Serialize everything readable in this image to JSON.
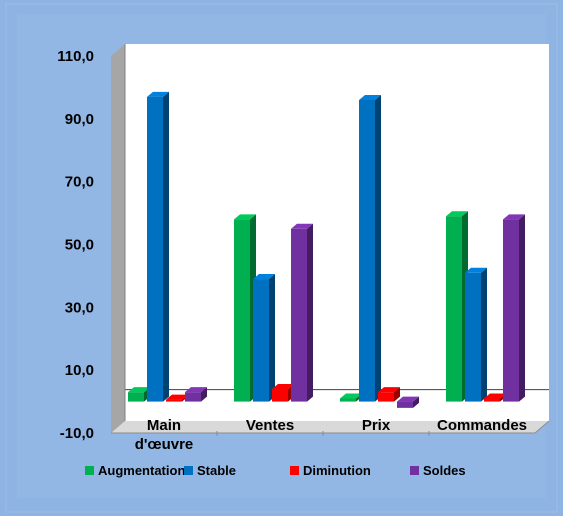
{
  "chart_data": {
    "type": "bar",
    "title": "",
    "xlabel": "",
    "ylabel": "",
    "ylim": [
      -10,
      110
    ],
    "y_ticks": [
      "110,0",
      "90,0",
      "70,0",
      "50,0",
      "30,0",
      "10,0",
      "-10,0"
    ],
    "y_tick_values": [
      110,
      90,
      70,
      50,
      30,
      10,
      -10
    ],
    "categories": [
      [
        "Main",
        "d'œuvre"
      ],
      [
        "Ventes"
      ],
      [
        "Prix"
      ],
      [
        "Commandes"
      ]
    ],
    "series": [
      {
        "name": "Augmentation",
        "color": "#00b050",
        "values": [
          3,
          58,
          1,
          59
        ]
      },
      {
        "name": "Stable",
        "color": "#0070c0",
        "values": [
          97,
          39,
          96,
          41
        ]
      },
      {
        "name": "Diminution",
        "color": "#ff0000",
        "values": [
          0,
          4,
          3,
          1
        ]
      },
      {
        "name": "Soldes",
        "color": "#7030a0",
        "values": [
          3,
          55,
          -2,
          58
        ]
      }
    ],
    "grid": false,
    "legend": "bottom",
    "style": "3d-columns"
  },
  "colors": {
    "frame_background": "#8eb4e3",
    "plot_background": "#ffffff",
    "floor": "#d9d9d9",
    "wall_side": "#a6a6a6"
  }
}
